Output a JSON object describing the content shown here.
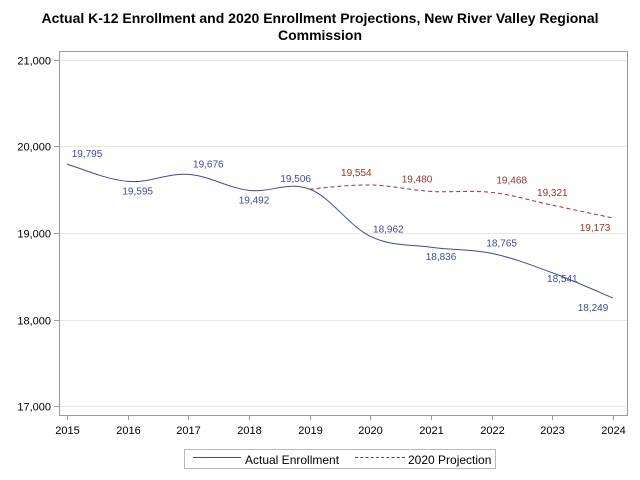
{
  "chart_data": {
    "type": "line",
    "title": "Actual K-12 Enrollment and 2020 Enrollment Projections, New River Valley Regional Commission",
    "title_lines": [
      "Actual K-12 Enrollment and 2020 Enrollment Projections, New River Valley Regional",
      "Commission"
    ],
    "xlabel": "",
    "ylabel": "",
    "x_ticks": [
      2015,
      2016,
      2017,
      2018,
      2019,
      2020,
      2021,
      2022,
      2023,
      2024
    ],
    "xlim": [
      2015,
      2024
    ],
    "ylim": [
      16900,
      21100
    ],
    "y_ticks": [
      17000,
      18000,
      19000,
      20000,
      21000
    ],
    "y_tick_labels": [
      "17,000",
      "18,000",
      "19,000",
      "20,000",
      "21,000"
    ],
    "grid": "horizontal",
    "legend_position": "bottom-center",
    "series": [
      {
        "name": "Actual Enrollment",
        "color": "#3b4ba0",
        "style": "solid",
        "x": [
          2015,
          2016,
          2017,
          2018,
          2019,
          2020,
          2021,
          2022,
          2023,
          2024
        ],
        "values": [
          19795,
          19595,
          19676,
          19492,
          19506,
          18962,
          18836,
          18765,
          18541,
          18249
        ],
        "labels": [
          "19,795",
          "19,595",
          "19,676",
          "19,492",
          "19,506",
          "18,962",
          "18,836",
          "18,765",
          "18,541",
          "18,249"
        ]
      },
      {
        "name": "2020 Projection",
        "color": "#a3312a",
        "style": "dashed",
        "x": [
          2019,
          2020,
          2021,
          2022,
          2023,
          2024
        ],
        "values": [
          19506,
          19554,
          19480,
          19468,
          19321,
          19173
        ],
        "labels": [
          "",
          "19,554",
          "19,480",
          "19,468",
          "19,321",
          "19,173"
        ]
      }
    ]
  }
}
